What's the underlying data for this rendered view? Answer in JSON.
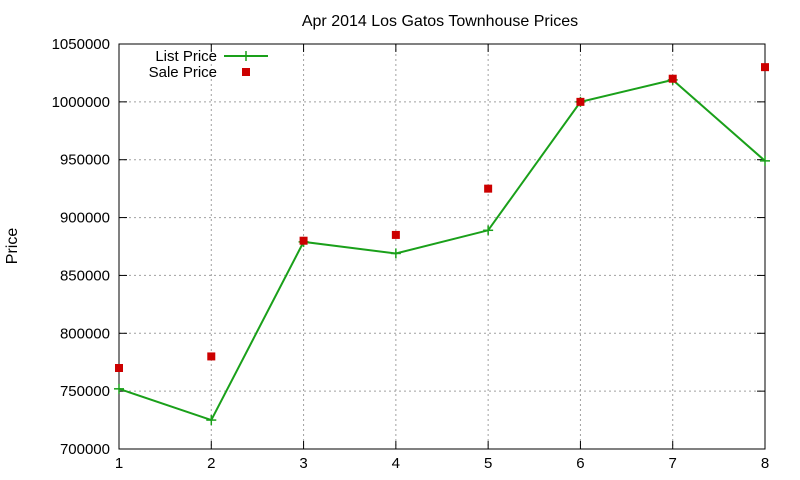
{
  "chart_data": {
    "type": "line",
    "title": "Apr 2014 Los Gatos Townhouse Prices",
    "xlabel": "",
    "ylabel": "Price",
    "xlim": [
      1,
      8
    ],
    "ylim": [
      700000,
      1050000
    ],
    "x_ticks": [
      "1",
      "2",
      "3",
      "4",
      "5",
      "6",
      "7",
      "8"
    ],
    "y_ticks": [
      "700000",
      "750000",
      "800000",
      "850000",
      "900000",
      "950000",
      "1000000",
      "1050000"
    ],
    "grid": true,
    "legend_position": "top-left",
    "series": [
      {
        "name": "List Price",
        "style": "line-with-plus-markers",
        "color": "#1aa01a",
        "x": [
          1,
          2,
          3,
          4,
          5,
          6,
          7,
          8
        ],
        "values": [
          752000,
          725000,
          879000,
          869000,
          889000,
          1000000,
          1019000,
          949000
        ]
      },
      {
        "name": "Sale Price",
        "style": "square-markers",
        "color": "#cc0000",
        "x": [
          1,
          2,
          3,
          4,
          5,
          6,
          7,
          8
        ],
        "values": [
          770000,
          780000,
          880000,
          885000,
          925000,
          1000000,
          1020000,
          1030000
        ]
      }
    ]
  }
}
